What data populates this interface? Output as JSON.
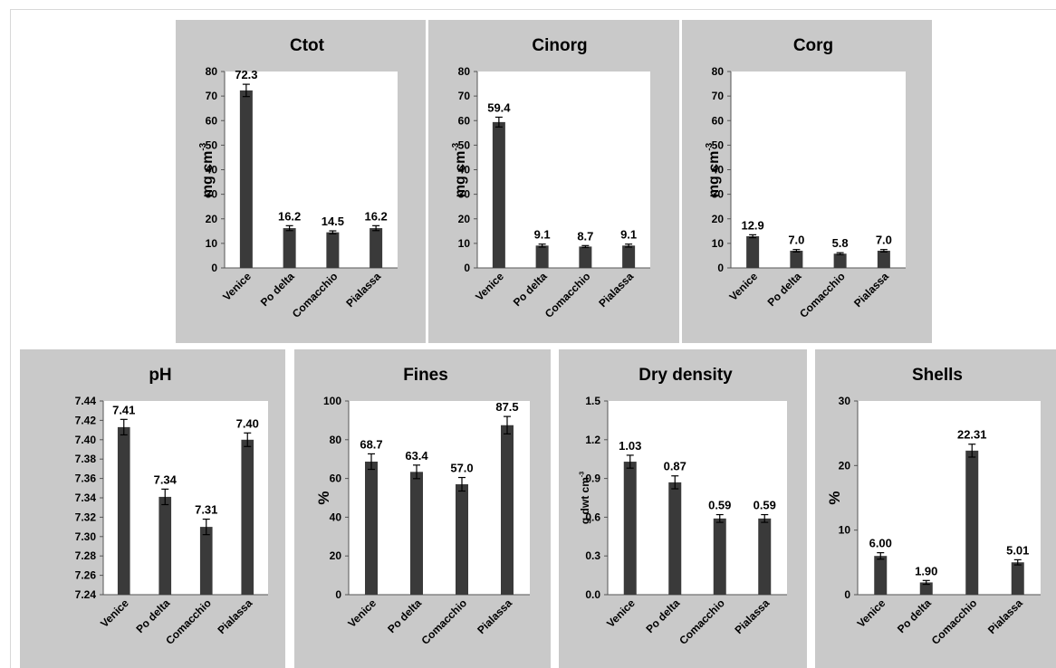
{
  "figure": {
    "categories": [
      "Venice",
      "Po delta",
      "Comacchio",
      "Pialassa"
    ],
    "bar_color": "#3a3a3a",
    "panel_color": "#c9c9c9"
  },
  "chart_data": [
    {
      "type": "bar",
      "title": "Ctot",
      "ylabel": "mg cm",
      "ylabel_sup": "-3",
      "categories": [
        "Venice",
        "Po delta",
        "Comacchio",
        "Pialassa"
      ],
      "values": [
        72.3,
        16.2,
        14.5,
        16.2
      ],
      "value_labels": [
        "72.3",
        "16.2",
        "14.5",
        "16.2"
      ],
      "errors": [
        2.5,
        1.0,
        0.6,
        1.0
      ],
      "ylim": [
        0,
        80
      ],
      "yticks": [
        0,
        10,
        20,
        30,
        40,
        50,
        60,
        70,
        80
      ],
      "ytick_labels": [
        "0",
        "10",
        "20",
        "30",
        "40",
        "50",
        "60",
        "70",
        "80"
      ]
    },
    {
      "type": "bar",
      "title": "Cinorg",
      "ylabel": "mg cm",
      "ylabel_sup": "-3",
      "categories": [
        "Venice",
        "Po delta",
        "Comacchio",
        "Pialassa"
      ],
      "values": [
        59.4,
        9.1,
        8.7,
        9.1
      ],
      "value_labels": [
        "59.4",
        "9.1",
        "8.7",
        "9.1"
      ],
      "errors": [
        2.0,
        0.6,
        0.4,
        0.6
      ],
      "ylim": [
        0,
        80
      ],
      "yticks": [
        0,
        10,
        20,
        30,
        40,
        50,
        60,
        70,
        80
      ],
      "ytick_labels": [
        "0",
        "10",
        "20",
        "30",
        "40",
        "50",
        "60",
        "70",
        "80"
      ]
    },
    {
      "type": "bar",
      "title": "Corg",
      "ylabel": "mg cm",
      "ylabel_sup": "-3",
      "categories": [
        "Venice",
        "Po delta",
        "Comacchio",
        "Pialassa"
      ],
      "values": [
        12.9,
        7.0,
        5.8,
        7.0
      ],
      "value_labels": [
        "12.9",
        "7.0",
        "5.8",
        "7.0"
      ],
      "errors": [
        0.6,
        0.5,
        0.4,
        0.5
      ],
      "ylim": [
        0,
        80
      ],
      "yticks": [
        0,
        10,
        20,
        30,
        40,
        50,
        60,
        70,
        80
      ],
      "ytick_labels": [
        "0",
        "10",
        "20",
        "30",
        "40",
        "50",
        "60",
        "70",
        "80"
      ]
    },
    {
      "type": "bar",
      "title": "pH",
      "ylabel": "",
      "ylabel_sup": "",
      "categories": [
        "Venice",
        "Po delta",
        "Comacchio",
        "Pialassa"
      ],
      "values": [
        7.413,
        7.341,
        7.31,
        7.4
      ],
      "value_labels": [
        "7.41",
        "7.34",
        "7.31",
        "7.40"
      ],
      "errors": [
        0.008,
        0.008,
        0.008,
        0.007
      ],
      "ylim": [
        7.24,
        7.44
      ],
      "yticks": [
        7.24,
        7.26,
        7.28,
        7.3,
        7.32,
        7.34,
        7.36,
        7.38,
        7.4,
        7.42,
        7.44
      ],
      "ytick_labels": [
        "7.24",
        "7.26",
        "7.28",
        "7.30",
        "7.32",
        "7.34",
        "7.36",
        "7.38",
        "7.40",
        "7.42",
        "7.44"
      ]
    },
    {
      "type": "bar",
      "title": "Fines",
      "ylabel": "%",
      "ylabel_sup": "",
      "categories": [
        "Venice",
        "Po delta",
        "Comacchio",
        "Pialassa"
      ],
      "values": [
        68.7,
        63.4,
        57.0,
        87.5
      ],
      "value_labels": [
        "68.7",
        "63.4",
        "57.0",
        "87.5"
      ],
      "errors": [
        4.0,
        3.5,
        3.5,
        4.5
      ],
      "ylim": [
        0,
        100
      ],
      "yticks": [
        0,
        20,
        40,
        60,
        80,
        100
      ],
      "ytick_labels": [
        "0",
        "20",
        "40",
        "60",
        "80",
        "100"
      ]
    },
    {
      "type": "bar",
      "title": "Dry density",
      "ylabel": "g dwt cm",
      "ylabel_sup": "-3",
      "categories": [
        "Venice",
        "Po delta",
        "Comacchio",
        "Pialassa"
      ],
      "values": [
        1.03,
        0.87,
        0.59,
        0.59
      ],
      "value_labels": [
        "1.03",
        "0.87",
        "0.59",
        "0.59"
      ],
      "errors": [
        0.05,
        0.05,
        0.03,
        0.03
      ],
      "ylim": [
        0,
        1.5
      ],
      "yticks": [
        0,
        0.3,
        0.6,
        0.9,
        1.2,
        1.5
      ],
      "ytick_labels": [
        "0.0",
        "0.3",
        "0.6",
        "0.9",
        "1.2",
        "1.5"
      ]
    },
    {
      "type": "bar",
      "title": "Shells",
      "ylabel": "%",
      "ylabel_sup": "",
      "categories": [
        "Venice",
        "Po delta",
        "Comacchio",
        "Pialassa"
      ],
      "values": [
        6.0,
        1.9,
        22.31,
        5.01
      ],
      "value_labels": [
        "6.00",
        "1.90",
        "22.31",
        "5.01"
      ],
      "errors": [
        0.5,
        0.3,
        1.0,
        0.4
      ],
      "ylim": [
        0,
        30
      ],
      "yticks": [
        0,
        10,
        20,
        30
      ],
      "ytick_labels": [
        "0",
        "10",
        "20",
        "30"
      ]
    }
  ]
}
